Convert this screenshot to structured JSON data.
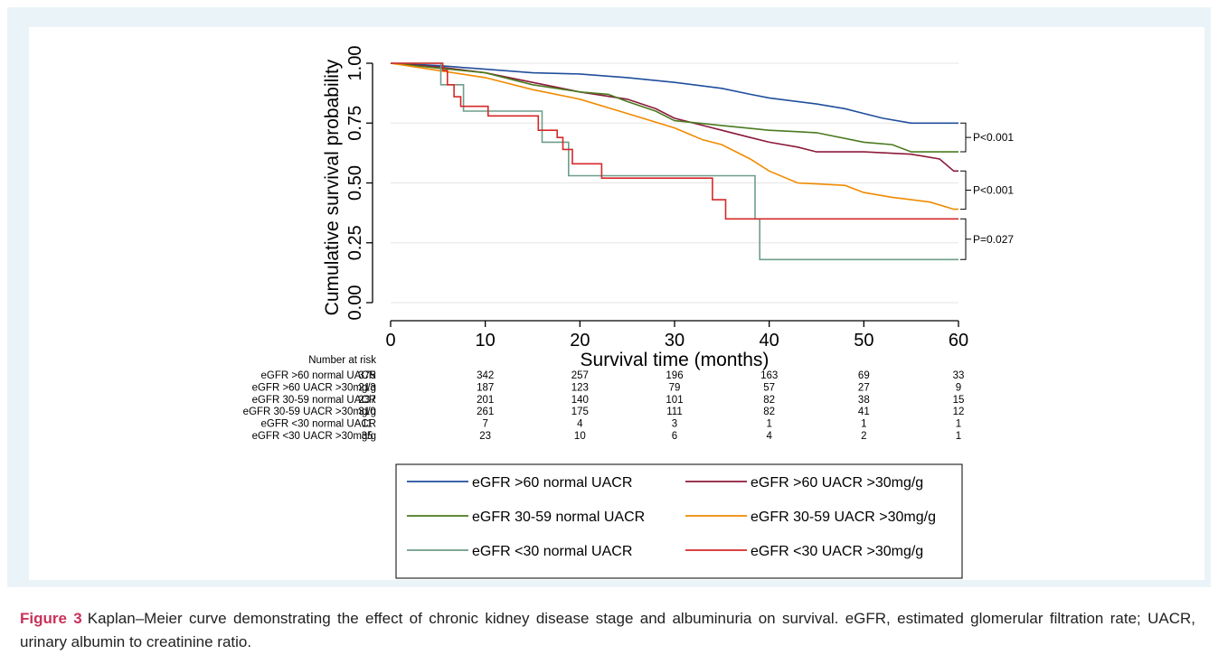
{
  "caption": {
    "label": "Figure 3",
    "text": "Kaplan–Meier curve demonstrating the effect of chronic kidney disease stage and albuminuria on survival. eGFR, estimated glomerular filtration rate; UACR, urinary albumin to creatinine ratio."
  },
  "chart_data": {
    "type": "line",
    "title": "",
    "xlabel": "Survival time (months)",
    "ylabel": "Cumulative survival probability",
    "xlim": [
      0,
      60
    ],
    "ylim": [
      0,
      1
    ],
    "xticks": [
      0,
      10,
      20,
      30,
      40,
      50,
      60
    ],
    "xtick_labels": [
      "0",
      "10",
      "20",
      "30",
      "40",
      "50",
      "60"
    ],
    "yticks": [
      0,
      0.25,
      0.5,
      0.75,
      1.0
    ],
    "ytick_labels": [
      "0.00",
      "0.25",
      "0.50",
      "0.75",
      "1.00"
    ],
    "grid": true,
    "legend_position": "bottom",
    "series": [
      {
        "name": "eGFR >60 normal UACR",
        "color": "#1f4e9c",
        "points": [
          [
            0,
            1
          ],
          [
            5,
            0.99
          ],
          [
            10,
            0.975
          ],
          [
            15,
            0.96
          ],
          [
            20,
            0.955
          ],
          [
            25,
            0.94
          ],
          [
            30,
            0.92
          ],
          [
            35,
            0.895
          ],
          [
            38,
            0.87
          ],
          [
            40,
            0.855
          ],
          [
            45,
            0.83
          ],
          [
            48,
            0.81
          ],
          [
            50,
            0.79
          ],
          [
            52,
            0.77
          ],
          [
            55,
            0.75
          ],
          [
            60,
            0.75
          ]
        ]
      },
      {
        "name": "eGFR >60 UACR >30mg/g",
        "color": "#8b1a3a",
        "points": [
          [
            0,
            1
          ],
          [
            5,
            0.985
          ],
          [
            10,
            0.96
          ],
          [
            15,
            0.92
          ],
          [
            20,
            0.88
          ],
          [
            25,
            0.85
          ],
          [
            28,
            0.81
          ],
          [
            30,
            0.77
          ],
          [
            33,
            0.74
          ],
          [
            35,
            0.72
          ],
          [
            38,
            0.69
          ],
          [
            40,
            0.67
          ],
          [
            43,
            0.65
          ],
          [
            45,
            0.63
          ],
          [
            50,
            0.63
          ],
          [
            55,
            0.62
          ],
          [
            58,
            0.6
          ],
          [
            59.5,
            0.55
          ],
          [
            60,
            0.55
          ]
        ]
      },
      {
        "name": "eGFR 30-59 normal UACR",
        "color": "#4a7a1e",
        "points": [
          [
            0,
            1
          ],
          [
            5,
            0.98
          ],
          [
            10,
            0.96
          ],
          [
            15,
            0.91
          ],
          [
            20,
            0.88
          ],
          [
            23,
            0.87
          ],
          [
            25,
            0.84
          ],
          [
            28,
            0.8
          ],
          [
            30,
            0.76
          ],
          [
            35,
            0.74
          ],
          [
            40,
            0.72
          ],
          [
            45,
            0.71
          ],
          [
            50,
            0.67
          ],
          [
            53,
            0.66
          ],
          [
            55,
            0.63
          ],
          [
            60,
            0.63
          ]
        ]
      },
      {
        "name": "eGFR 30-59 UACR >30mg/g",
        "color": "#f08a00",
        "points": [
          [
            0,
            1
          ],
          [
            5,
            0.97
          ],
          [
            10,
            0.94
          ],
          [
            15,
            0.89
          ],
          [
            20,
            0.85
          ],
          [
            25,
            0.79
          ],
          [
            30,
            0.73
          ],
          [
            33,
            0.68
          ],
          [
            35,
            0.66
          ],
          [
            38,
            0.6
          ],
          [
            40,
            0.55
          ],
          [
            43,
            0.5
          ],
          [
            48,
            0.49
          ],
          [
            50,
            0.46
          ],
          [
            53,
            0.44
          ],
          [
            57,
            0.42
          ],
          [
            59.5,
            0.39
          ],
          [
            60,
            0.39
          ]
        ]
      },
      {
        "name": "eGFR <30 normal UACR",
        "color": "#6e9e8a",
        "points": [
          [
            0,
            1
          ],
          [
            5.3,
            1
          ],
          [
            5.3,
            0.91
          ],
          [
            7.7,
            0.91
          ],
          [
            7.7,
            0.8
          ],
          [
            16,
            0.8
          ],
          [
            16,
            0.67
          ],
          [
            18.8,
            0.67
          ],
          [
            18.8,
            0.53
          ],
          [
            38.5,
            0.53
          ],
          [
            38.5,
            0.35
          ],
          [
            39,
            0.35
          ],
          [
            39,
            0.18
          ],
          [
            60,
            0.18
          ]
        ]
      },
      {
        "name": "eGFR <30 UACR >30mg/g",
        "color": "#d62828",
        "points": [
          [
            0,
            1
          ],
          [
            5.5,
            1
          ],
          [
            5.5,
            0.97
          ],
          [
            6,
            0.97
          ],
          [
            6,
            0.91
          ],
          [
            6.7,
            0.91
          ],
          [
            6.7,
            0.86
          ],
          [
            7.4,
            0.86
          ],
          [
            7.4,
            0.82
          ],
          [
            10.3,
            0.82
          ],
          [
            10.3,
            0.78
          ],
          [
            15.6,
            0.78
          ],
          [
            15.6,
            0.72
          ],
          [
            17.6,
            0.72
          ],
          [
            17.6,
            0.69
          ],
          [
            18.2,
            0.69
          ],
          [
            18.2,
            0.64
          ],
          [
            19.2,
            0.64
          ],
          [
            19.2,
            0.58
          ],
          [
            22.3,
            0.58
          ],
          [
            22.3,
            0.52
          ],
          [
            34,
            0.52
          ],
          [
            34,
            0.43
          ],
          [
            35.4,
            0.43
          ],
          [
            35.4,
            0.35
          ],
          [
            60,
            0.35
          ]
        ]
      }
    ],
    "annotations": [
      {
        "text": "P<0.001",
        "y_top": 0.75,
        "y_bottom": 0.63
      },
      {
        "text": "P<0.001",
        "y_top": 0.55,
        "y_bottom": 0.39
      },
      {
        "text": "P=0.027",
        "y_top": 0.35,
        "y_bottom": 0.18
      }
    ],
    "risk_table": {
      "title": "Number at risk",
      "rows": [
        {
          "label": "eGFR >60 normal UACR",
          "values": [
            375,
            342,
            257,
            196,
            163,
            69,
            33
          ]
        },
        {
          "label": "eGFR >60 UACR >30mg/g",
          "values": [
            213,
            187,
            123,
            79,
            57,
            27,
            9
          ]
        },
        {
          "label": "eGFR 30-59 normal UACR",
          "values": [
            237,
            201,
            140,
            101,
            82,
            38,
            15
          ]
        },
        {
          "label": "eGFR 30-59 UACR >30mg/g",
          "values": [
            310,
            261,
            175,
            111,
            82,
            41,
            12
          ]
        },
        {
          "label": "eGFR <30 normal UACR",
          "values": [
            11,
            7,
            4,
            3,
            1,
            1,
            1
          ]
        },
        {
          "label": "eGFR <30 UACR >30mg/g",
          "values": [
            35,
            23,
            10,
            6,
            4,
            2,
            1
          ]
        }
      ]
    }
  }
}
